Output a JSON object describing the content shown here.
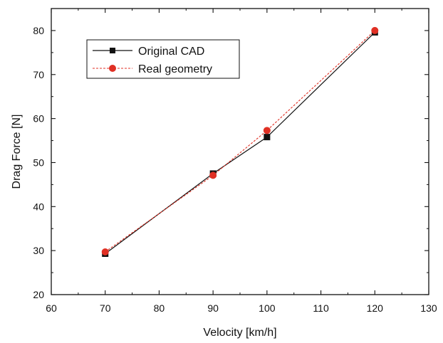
{
  "chart_data": {
    "type": "line",
    "title": "",
    "xlabel": "Velocity [km/h]",
    "ylabel": "Drag Force [N]",
    "xlim": [
      60,
      130
    ],
    "ylim": [
      20,
      85
    ],
    "x_ticks": [
      60,
      70,
      80,
      90,
      100,
      110,
      120,
      130
    ],
    "y_ticks": [
      20,
      30,
      40,
      50,
      60,
      70,
      80
    ],
    "grid": false,
    "legend_position": "top-left",
    "series": [
      {
        "name": "Original CAD",
        "color": "#111111",
        "marker": "square",
        "line_style": "solid",
        "x": [
          70,
          90,
          100,
          120
        ],
        "y": [
          29.3,
          47.5,
          55.8,
          79.6
        ]
      },
      {
        "name": "Real geometry",
        "color": "#e03024",
        "marker": "circle",
        "line_style": "dashed",
        "x": [
          70,
          90,
          100,
          120
        ],
        "y": [
          29.7,
          47.1,
          57.3,
          80.0
        ]
      }
    ]
  }
}
